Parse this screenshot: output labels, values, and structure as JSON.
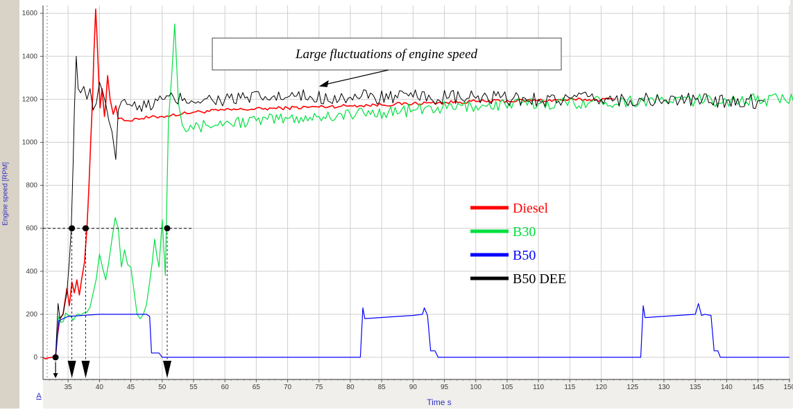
{
  "chart_data": {
    "type": "line",
    "xlabel": "Time  s",
    "ylabel": "Engine speed [RPM]",
    "xlim": [
      31,
      151
    ],
    "ylim": [
      -100,
      1650
    ],
    "x_ticks": [
      35,
      40,
      45,
      50,
      55,
      60,
      65,
      70,
      75,
      80,
      85,
      90,
      95,
      100,
      105,
      110,
      115,
      120,
      125,
      130,
      135,
      140,
      145,
      150
    ],
    "y_ticks": [
      0,
      200,
      400,
      600,
      800,
      1000,
      1200,
      1400,
      1600
    ],
    "grid": true,
    "legend_position": "right-middle",
    "corner_label": "A",
    "annotations": [
      {
        "text": "Large fluctuations of engine speed",
        "points_to": [
          75,
          1260
        ]
      }
    ],
    "reference_line": {
      "y": 600,
      "x_from": 31,
      "x_to": 55
    },
    "event_markers": [
      {
        "x": 33.0,
        "y": 0,
        "arrow": "small"
      },
      {
        "x": 35.6,
        "y": 600,
        "arrow": "large"
      },
      {
        "x": 37.8,
        "y": 600,
        "arrow": "large"
      },
      {
        "x": 50.8,
        "y": 600,
        "arrow": "large"
      }
    ],
    "series": [
      {
        "name": "Diesel",
        "color": "#ff0000",
        "stroke_width": 1.6,
        "x": [
          31.0,
          32.5,
          33.0,
          33.3,
          33.7,
          34.2,
          34.8,
          35.2,
          35.6,
          36.0,
          36.4,
          36.8,
          37.2,
          37.6,
          38.0,
          38.3,
          38.6,
          38.9,
          39.1,
          39.4,
          39.6,
          39.9,
          40.1,
          40.4,
          40.8,
          41.0,
          41.3,
          41.7,
          42.2,
          42.6,
          43.0,
          44.0,
          46.0,
          50.0,
          55.0,
          60.0,
          70.0,
          80.0,
          90.0,
          100.0,
          110.0,
          122.0
        ],
        "y": [
          0,
          0,
          0,
          100,
          180,
          200,
          320,
          240,
          350,
          300,
          360,
          290,
          370,
          440,
          600,
          780,
          1000,
          1200,
          1400,
          1620,
          1500,
          1280,
          1160,
          1250,
          1120,
          1180,
          1310,
          1200,
          1130,
          1170,
          1110,
          1100,
          1110,
          1120,
          1140,
          1150,
          1160,
          1170,
          1180,
          1190,
          1195,
          1200
        ],
        "noise": 8
      },
      {
        "name": "B30",
        "color": "#00e040",
        "stroke_width": 1.2,
        "x": [
          33.0,
          33.5,
          35.0,
          37.0,
          38.0,
          39.0,
          40.0,
          41.0,
          42.0,
          42.5,
          43.0,
          43.5,
          44.0,
          45.0,
          46.0,
          47.0,
          48.0,
          48.8,
          49.5,
          50.0,
          50.5,
          51.0,
          51.5,
          52.0,
          52.6,
          53.2,
          53.8,
          54.5,
          55.0,
          57.0,
          60.0,
          65.0,
          70.0,
          75.0,
          80.0,
          90.0,
          100.0,
          110.0,
          120.0,
          130.0,
          140.0,
          151.0
        ],
        "y": [
          0,
          190,
          195,
          195,
          210,
          300,
          480,
          360,
          550,
          650,
          600,
          420,
          500,
          420,
          200,
          200,
          350,
          550,
          420,
          640,
          380,
          1100,
          1300,
          1550,
          1180,
          1080,
          1050,
          1080,
          1060,
          1080,
          1090,
          1100,
          1110,
          1120,
          1130,
          1150,
          1170,
          1180,
          1190,
          1195,
          1195,
          1200
        ],
        "noise": 30
      },
      {
        "name": "B50",
        "color": "#0000ff",
        "stroke_width": 1.2,
        "x": [
          33.0,
          33.5,
          35.0,
          40.0,
          45.0,
          47.5,
          48.0,
          48.3,
          49.5,
          50.0,
          80.0,
          81.6,
          82.0,
          82.3,
          90.0,
          91.5,
          91.8,
          92.3,
          92.8,
          93.5,
          94.0,
          125.0,
          126.3,
          126.7,
          127.0,
          135.0,
          135.5,
          136.0,
          136.5,
          137.5,
          138.0,
          138.6,
          139.0,
          150.0
        ],
        "y": [
          0,
          170,
          190,
          200,
          200,
          200,
          190,
          20,
          20,
          0,
          0,
          0,
          230,
          180,
          195,
          200,
          230,
          195,
          30,
          30,
          0,
          0,
          0,
          240,
          185,
          200,
          250,
          195,
          200,
          195,
          30,
          30,
          0,
          0
        ],
        "noise": 0
      },
      {
        "name": "B50 DEE",
        "color": "#000000",
        "stroke_width": 1.0,
        "x": [
          33.0,
          33.4,
          33.7,
          34.2,
          34.8,
          35.2,
          35.5,
          35.8,
          36.0,
          36.3,
          36.6,
          37.0,
          37.5,
          38.0,
          38.5,
          39.0,
          40.0,
          41.0,
          41.5,
          42.0,
          42.6,
          43.0,
          43.5,
          44.0,
          46.0,
          50.0,
          60.0,
          70.0,
          80.0,
          90.0,
          100.0,
          110.0,
          120.0,
          130.0,
          140.0,
          146.0
        ],
        "y": [
          0,
          250,
          180,
          200,
          300,
          450,
          600,
          900,
          1150,
          1400,
          1250,
          1230,
          1260,
          1200,
          1250,
          1150,
          1280,
          1180,
          1100,
          1050,
          920,
          1150,
          1190,
          1200,
          1150,
          1200,
          1200,
          1210,
          1210,
          1210,
          1205,
          1200,
          1200,
          1195,
          1195,
          1190
        ],
        "noise": 35
      }
    ]
  }
}
